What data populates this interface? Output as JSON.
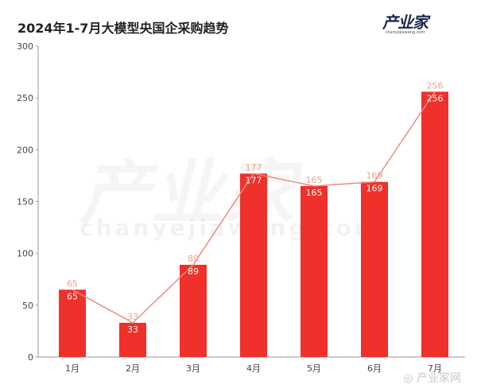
{
  "chart_data": {
    "type": "bar",
    "title": "2024年1-7月大模型央国企采购趋势",
    "categories": [
      "1月",
      "2月",
      "3月",
      "4月",
      "5月",
      "6月",
      "7月"
    ],
    "values": [
      65,
      33,
      89,
      177,
      165,
      169,
      256
    ],
    "line_overlay": true,
    "xlabel": "",
    "ylabel": "",
    "ylim": [
      0,
      300
    ],
    "yticks": [
      0,
      50,
      100,
      150,
      200,
      250,
      300
    ],
    "grid": false,
    "colors": {
      "bar": "#f0302a",
      "line": "#f08a80",
      "label_above": "#f0a090",
      "label_inside": "#ffffff"
    }
  },
  "logo": {
    "name": "产业家",
    "sub": "chanyejiawang.com"
  },
  "watermark": {
    "text": "产业家",
    "sub": "chanyejiawang.com"
  },
  "footer": {
    "source": "产业家网"
  }
}
